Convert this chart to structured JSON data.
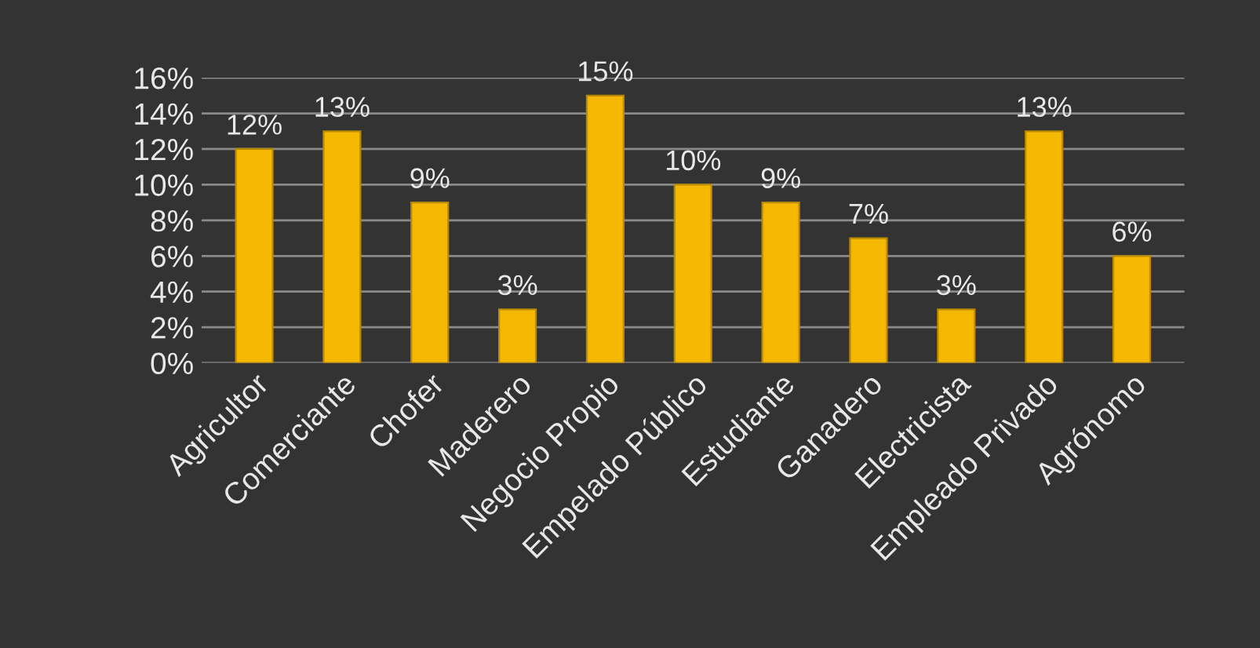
{
  "chart_data": {
    "type": "bar",
    "categories": [
      "Agricultor",
      "Comerciante",
      "Chofer",
      "Maderero",
      "Negocio Propio",
      "Empelado Público",
      "Estudiante",
      "Ganadero",
      "Electricista",
      "Empleado Privado",
      "Agrónomo"
    ],
    "values": [
      12,
      13,
      9,
      3,
      15,
      10,
      9,
      7,
      3,
      13,
      6
    ],
    "value_labels": [
      "12%",
      "13%",
      "9%",
      "3%",
      "15%",
      "10%",
      "9%",
      "7%",
      "3%",
      "13%",
      "6%"
    ],
    "color": "#f5b800",
    "ylim": [
      0,
      16
    ],
    "yticks": [
      {
        "value": 0,
        "label": "0%"
      },
      {
        "value": 2,
        "label": "2%"
      },
      {
        "value": 4,
        "label": "4%"
      },
      {
        "value": 6,
        "label": "6%"
      },
      {
        "value": 8,
        "label": "8%"
      },
      {
        "value": 10,
        "label": "10%"
      },
      {
        "value": 12,
        "label": "12%"
      },
      {
        "value": 14,
        "label": "14%"
      },
      {
        "value": 16,
        "label": "16%"
      }
    ],
    "grid": "y"
  }
}
